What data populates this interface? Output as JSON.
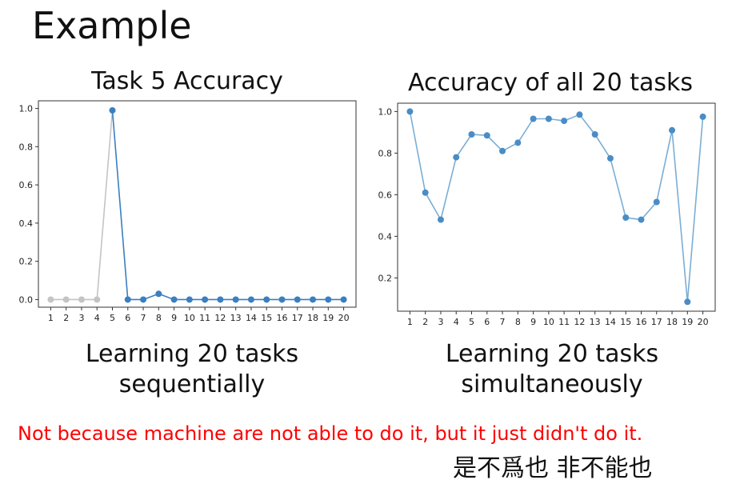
{
  "slide": {
    "title": "Example",
    "note": "Not because machine are not able to do it, but it just didn't do it.",
    "cjk_caption": "是不爲也 非不能也"
  },
  "captions": {
    "left": [
      "Learning 20 tasks",
      "sequentially"
    ],
    "right": [
      "Learning 20 tasks",
      "simultaneously"
    ]
  },
  "chart_data": [
    {
      "type": "line",
      "title": "Task 5 Accuracy",
      "xlabel": "",
      "ylabel": "",
      "x": [
        1,
        2,
        3,
        4,
        5,
        6,
        7,
        8,
        9,
        10,
        11,
        12,
        13,
        14,
        15,
        16,
        17,
        18,
        19,
        20
      ],
      "y": [
        0.0,
        0.0,
        0.0,
        0.0,
        0.99,
        0.0,
        0.0,
        0.03,
        0.0,
        0.0,
        0.0,
        0.0,
        0.0,
        0.0,
        0.0,
        0.0,
        0.0,
        0.0,
        0.0,
        0.0
      ],
      "gray_until_x": 4,
      "yticks": [
        "0.0",
        "0.2",
        "0.4",
        "0.6",
        "0.8",
        "1.0"
      ],
      "ylim": [
        -0.04,
        1.04
      ],
      "grid": false,
      "colors": {
        "active": "#3a7fc0",
        "inactive": "#c4c4c4"
      }
    },
    {
      "type": "line",
      "title": "Accuracy of all 20 tasks",
      "xlabel": "",
      "ylabel": "",
      "x": [
        1,
        2,
        3,
        4,
        5,
        6,
        7,
        8,
        9,
        10,
        11,
        12,
        13,
        14,
        15,
        16,
        17,
        18,
        19,
        20
      ],
      "y": [
        1.0,
        0.61,
        0.48,
        0.78,
        0.89,
        0.885,
        0.81,
        0.85,
        0.965,
        0.965,
        0.955,
        0.985,
        0.89,
        0.775,
        0.49,
        0.48,
        0.565,
        0.91,
        0.085,
        0.975
      ],
      "yticks": [
        "0.2",
        "0.4",
        "0.6",
        "0.8",
        "1.0"
      ],
      "ylim": [
        0.04,
        1.04
      ],
      "grid": false,
      "colors": {
        "line": "#7aaed4",
        "marker": "#4a8cc6"
      }
    }
  ]
}
